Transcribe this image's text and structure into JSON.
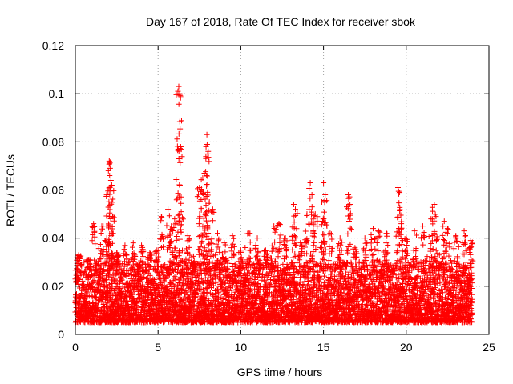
{
  "chart_data": {
    "type": "scatter",
    "title": "Day 167 of 2018, Rate Of TEC Index for receiver sbok",
    "xlabel": "GPS time / hours",
    "ylabel": "ROTI / TECUs",
    "xlim": [
      0,
      25
    ],
    "ylim": [
      0,
      0.12
    ],
    "x_ticks": [
      0,
      5,
      10,
      15,
      20,
      25
    ],
    "x_tick_labels": [
      "0",
      "5",
      "10",
      "15",
      "20",
      "25"
    ],
    "y_ticks": [
      0,
      0.02,
      0.04,
      0.06,
      0.08,
      0.1,
      0.12
    ],
    "y_tick_labels": [
      "0",
      "0.02",
      "0.04",
      "0.06",
      "0.08",
      "0.1",
      "0.12"
    ],
    "grid": true,
    "marker": "+",
    "color": "#ff0000",
    "data_span_hours": [
      0,
      24
    ],
    "baseline_roti": [
      0.005,
      0.03
    ],
    "series": [
      {
        "name": "ROTI",
        "points": [
          [
            0.2,
            0.033
          ],
          [
            0.8,
            0.031
          ],
          [
            1.1,
            0.046
          ],
          [
            1.6,
            0.045
          ],
          [
            1.9,
            0.04
          ],
          [
            2.0,
            0.068
          ],
          [
            2.05,
            0.072
          ],
          [
            2.1,
            0.069
          ],
          [
            2.15,
            0.064
          ],
          [
            2.2,
            0.062
          ],
          [
            2.25,
            0.049
          ],
          [
            2.5,
            0.034
          ],
          [
            3.0,
            0.037
          ],
          [
            3.5,
            0.038
          ],
          [
            4.0,
            0.037
          ],
          [
            4.5,
            0.034
          ],
          [
            4.9,
            0.035
          ],
          [
            5.2,
            0.049
          ],
          [
            5.6,
            0.052
          ],
          [
            5.8,
            0.045
          ],
          [
            6.0,
            0.048
          ],
          [
            6.2,
            0.101
          ],
          [
            6.25,
            0.103
          ],
          [
            6.3,
            0.1
          ],
          [
            6.35,
            0.099
          ],
          [
            6.4,
            0.051
          ],
          [
            6.8,
            0.041
          ],
          [
            7.1,
            0.028
          ],
          [
            7.5,
            0.061
          ],
          [
            7.6,
            0.056
          ],
          [
            7.7,
            0.065
          ],
          [
            7.8,
            0.067
          ],
          [
            7.9,
            0.078
          ],
          [
            7.95,
            0.083
          ],
          [
            8.0,
            0.075
          ],
          [
            8.1,
            0.055
          ],
          [
            8.3,
            0.052
          ],
          [
            8.6,
            0.042
          ],
          [
            9.0,
            0.038
          ],
          [
            9.5,
            0.041
          ],
          [
            10.0,
            0.035
          ],
          [
            10.5,
            0.042
          ],
          [
            11.0,
            0.04
          ],
          [
            11.5,
            0.035
          ],
          [
            12.0,
            0.045
          ],
          [
            12.3,
            0.046
          ],
          [
            12.7,
            0.04
          ],
          [
            13.2,
            0.054
          ],
          [
            13.3,
            0.052
          ],
          [
            13.6,
            0.038
          ],
          [
            14.0,
            0.05
          ],
          [
            14.2,
            0.063
          ],
          [
            14.3,
            0.058
          ],
          [
            14.5,
            0.05
          ],
          [
            14.9,
            0.055
          ],
          [
            15.0,
            0.063
          ],
          [
            15.1,
            0.058
          ],
          [
            15.4,
            0.042
          ],
          [
            16.0,
            0.04
          ],
          [
            16.5,
            0.058
          ],
          [
            16.6,
            0.054
          ],
          [
            16.9,
            0.036
          ],
          [
            17.5,
            0.04
          ],
          [
            18.0,
            0.044
          ],
          [
            18.3,
            0.043
          ],
          [
            18.8,
            0.042
          ],
          [
            19.5,
            0.061
          ],
          [
            19.6,
            0.059
          ],
          [
            19.7,
            0.046
          ],
          [
            20.0,
            0.04
          ],
          [
            20.5,
            0.043
          ],
          [
            21.0,
            0.045
          ],
          [
            21.5,
            0.048
          ],
          [
            21.7,
            0.054
          ],
          [
            21.8,
            0.049
          ],
          [
            22.3,
            0.047
          ],
          [
            22.5,
            0.044
          ],
          [
            23.0,
            0.041
          ],
          [
            23.5,
            0.043
          ],
          [
            23.9,
            0.039
          ]
        ]
      }
    ]
  }
}
